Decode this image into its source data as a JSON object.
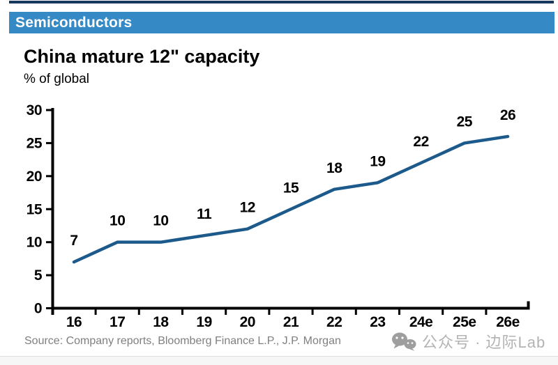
{
  "banner": {
    "label": "Semiconductors",
    "background": "#3589c4",
    "text_color": "#ffffff"
  },
  "top_rule_color": "#17375e",
  "chart_data": {
    "type": "line",
    "title": "China mature 12\" capacity",
    "subtitle": "% of global",
    "categories": [
      "16",
      "17",
      "18",
      "19",
      "20",
      "21",
      "22",
      "23",
      "24e",
      "25e",
      "26e"
    ],
    "values": [
      7,
      10,
      10,
      11,
      12,
      15,
      18,
      19,
      22,
      25,
      26
    ],
    "ylim": [
      0,
      30
    ],
    "yticks": [
      0,
      5,
      10,
      15,
      20,
      25,
      30
    ],
    "line_color": "#1d5a8c",
    "axis_color": "#000000",
    "grid": false,
    "legend": "none",
    "data_labels": true
  },
  "footer": {
    "source": "Source: Company reports, Bloomberg Finance L.P., J.P. Morgan",
    "watermark": "公众号 · 边际Lab"
  }
}
